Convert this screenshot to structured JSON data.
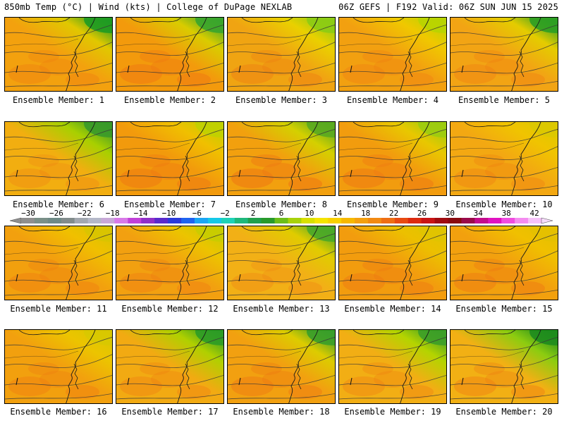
{
  "header": {
    "left": "850mb Temp (°C) | Wind (kts) | College of DuPage NEXLAB",
    "right": "06Z GEFS | F192 Valid: 06Z SUN JUN 15 2025"
  },
  "panels": [
    {
      "label": "Ensemble Member: 1",
      "base": "#f3a10e",
      "north": "#e0c800",
      "corner": "#1f9b22",
      "warm": 0.2
    },
    {
      "label": "Ensemble Member: 2",
      "base": "#f39a0c",
      "north": "#d9cc00",
      "corner": "#3aa52c",
      "warm": 0.5
    },
    {
      "label": "Ensemble Member: 3",
      "base": "#f0a412",
      "north": "#ead000",
      "corner": "#8ccc14",
      "warm": 0.3
    },
    {
      "label": "Ensemble Member: 4",
      "base": "#f2a010",
      "north": "#f0c800",
      "corner": "#b8d400",
      "warm": 0.2
    },
    {
      "label": "Ensemble Member: 5",
      "base": "#f2a414",
      "north": "#e4cc00",
      "corner": "#2c9e24",
      "warm": 0.2
    },
    {
      "label": "Ensemble Member: 6",
      "base": "#f2ae10",
      "north": "#a8d000",
      "corner": "#3a9a2a",
      "warm": 0.1
    },
    {
      "label": "Ensemble Member: 7",
      "base": "#f29a0c",
      "north": "#f0c000",
      "corner": "#c0d000",
      "warm": 0.5
    },
    {
      "label": "Ensemble Member: 8",
      "base": "#f2a00e",
      "north": "#d4d000",
      "corner": "#5aaa20",
      "warm": 0.6
    },
    {
      "label": "Ensemble Member: 9",
      "base": "#f29c0e",
      "north": "#e8c800",
      "corner": "#9ccc10",
      "warm": 0.5
    },
    {
      "label": "Ensemble Member: 10",
      "base": "#f3a812",
      "north": "#f0c400",
      "corner": "#dcc800",
      "warm": 0.2
    },
    {
      "label": "Ensemble Member: 11",
      "base": "#f2a00e",
      "north": "#f0c000",
      "corner": "#d8c400",
      "warm": 0.3
    },
    {
      "label": "Ensemble Member: 12",
      "base": "#f2a010",
      "north": "#ecc400",
      "corner": "#c8cc00",
      "warm": 0.3
    },
    {
      "label": "Ensemble Member: 13",
      "base": "#f2b016",
      "north": "#e0cc00",
      "corner": "#4aa828",
      "warm": 0.1
    },
    {
      "label": "Ensemble Member: 14",
      "base": "#f29c0e",
      "north": "#ecc000",
      "corner": "#e0c400",
      "warm": 0.4
    },
    {
      "label": "Ensemble Member: 15",
      "base": "#f2a00e",
      "north": "#f0c000",
      "corner": "#e4c000",
      "warm": 0.4
    },
    {
      "label": "Ensemble Member: 16",
      "base": "#f2a00e",
      "north": "#ecc400",
      "corner": "#d8c800",
      "warm": 0.3
    },
    {
      "label": "Ensemble Member: 17",
      "base": "#f2aa12",
      "north": "#b0d000",
      "corner": "#2e9c26",
      "warm": 0.2
    },
    {
      "label": "Ensemble Member: 18",
      "base": "#f2a010",
      "north": "#dccc00",
      "corner": "#3a9e2a",
      "warm": 0.4
    },
    {
      "label": "Ensemble Member: 19",
      "base": "#f2ae14",
      "north": "#b4d400",
      "corner": "#3c9e28",
      "warm": 0.2
    },
    {
      "label": "Ensemble Member: 20",
      "base": "#f2b014",
      "north": "#8ccc10",
      "corner": "#1e8c1e",
      "warm": 0.3
    }
  ],
  "scale": {
    "labels": [
      "−30",
      "−26",
      "−22",
      "−18",
      "−14",
      "−10",
      "−6",
      "−2",
      "2",
      "6",
      "10",
      "14",
      "18",
      "22",
      "26",
      "30",
      "34",
      "38",
      "42"
    ],
    "colors": [
      "#8f8f8f",
      "#7a9088",
      "#6e8a86",
      "#828c8c",
      "#a2a8b0",
      "#b4b8c8",
      "#c8a8d8",
      "#d879e8",
      "#c040d8",
      "#9030c8",
      "#5a2acc",
      "#2a3adc",
      "#1e64f0",
      "#1aa6f4",
      "#14c8e8",
      "#1ed2b8",
      "#1eb87c",
      "#20a04c",
      "#289a2c",
      "#6cbe1a",
      "#a8d20a",
      "#d8e000",
      "#f4e400",
      "#f8d000",
      "#f6b800",
      "#f4a010",
      "#f28a12",
      "#ee6e14",
      "#e84a12",
      "#dc2a10",
      "#c81414",
      "#a00c10",
      "#8a0a10",
      "#9a0a4a",
      "#c40c8c",
      "#e012c0",
      "#f04ce0",
      "#f48cf0",
      "#f6c2f8"
    ],
    "arrow_left": "#8f8f8f",
    "arrow_right": "#f6dcfc"
  }
}
